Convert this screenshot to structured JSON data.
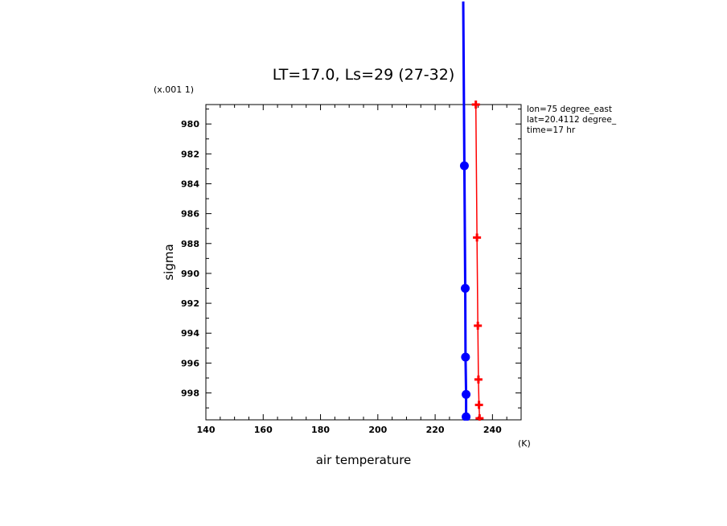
{
  "chart_data": {
    "type": "line",
    "title": "LT=17.0, Ls=29 (27-32)",
    "xlabel": "air temperature",
    "x_unit": "(K)",
    "ylabel": "sigma",
    "y_scale_note": "(x.001 1)",
    "xlim": [
      140,
      250
    ],
    "ylim": [
      999.8,
      978.7
    ],
    "y_inverted": true,
    "x_ticks": [
      140,
      160,
      180,
      200,
      220,
      240
    ],
    "y_ticks": [
      980,
      982,
      984,
      986,
      988,
      990,
      992,
      994,
      996,
      998
    ],
    "grid": false,
    "info_lines": [
      "lon=75 degree_east",
      "lat=20.4112 degree_",
      "time=17 hr"
    ],
    "series": [
      {
        "color": "#0000ff",
        "marker": "circle",
        "points": [
          {
            "x": 230.8,
            "y": 999.6
          },
          {
            "x": 230.8,
            "y": 998.1
          },
          {
            "x": 230.6,
            "y": 995.6
          },
          {
            "x": 230.5,
            "y": 991.0
          },
          {
            "x": 230.2,
            "y": 982.8
          }
        ],
        "extends_above": [
          {
            "x": 229.8,
            "y": 971.8
          }
        ]
      },
      {
        "color": "#ff0000",
        "marker": "plus",
        "points": [
          {
            "x": 235.5,
            "y": 999.7
          },
          {
            "x": 235.3,
            "y": 998.8
          },
          {
            "x": 235.1,
            "y": 997.1
          },
          {
            "x": 234.9,
            "y": 993.5
          },
          {
            "x": 234.6,
            "y": 987.6
          },
          {
            "x": 234.2,
            "y": 978.7
          }
        ]
      }
    ]
  }
}
